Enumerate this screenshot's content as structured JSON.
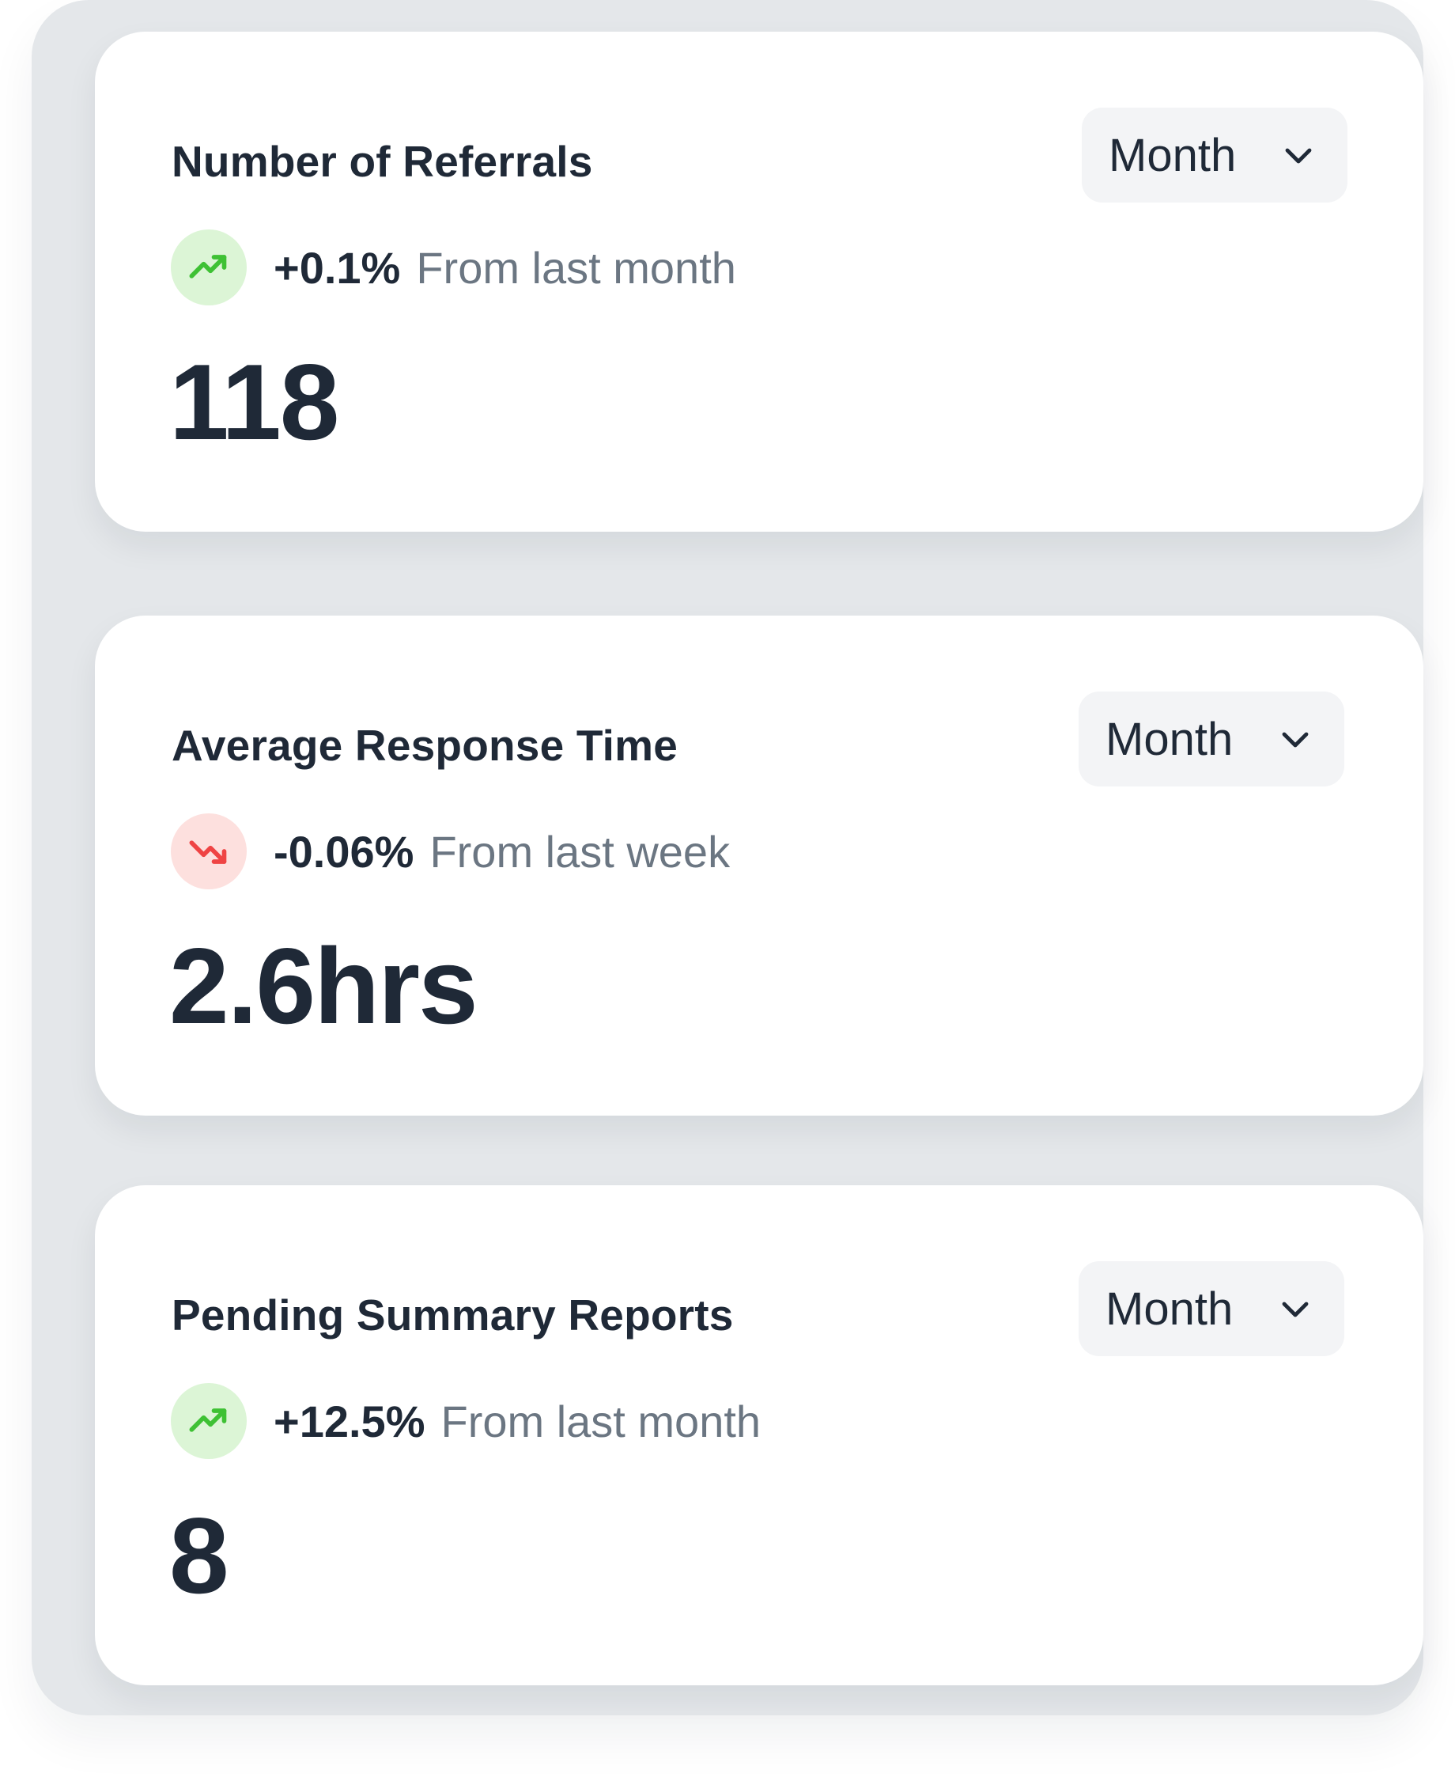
{
  "cards": [
    {
      "title": "Number of Referrals",
      "period": "Month",
      "trend": {
        "direction": "up",
        "icon": "trend-up-icon",
        "color": "#3ec134",
        "change": "+0.1%",
        "note": "From last month"
      },
      "value": "118"
    },
    {
      "title": "Average Response Time",
      "period": "Month",
      "trend": {
        "direction": "down",
        "icon": "trend-down-icon",
        "color": "#ef4444",
        "change": "-0.06%",
        "note": "From last week"
      },
      "value": "2.6hrs"
    },
    {
      "title": "Pending Summary Reports",
      "period": "Month",
      "trend": {
        "direction": "up",
        "icon": "trend-up-icon",
        "color": "#3ec134",
        "change": "+12.5%",
        "note": "From last month"
      },
      "value": "8"
    }
  ]
}
